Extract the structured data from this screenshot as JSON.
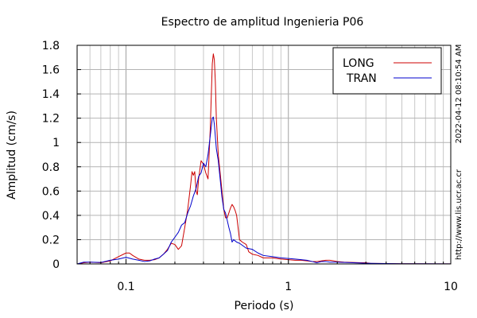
{
  "chart_data": {
    "type": "line",
    "title": "Espectro de amplitud Ingenieria P06",
    "xlabel": "Periodo (s)",
    "ylabel": "Amplitud (cm/s)",
    "x_scale": "log",
    "xlim": [
      0.05,
      10
    ],
    "ylim": [
      0,
      1.8
    ],
    "x_ticks": [
      0.1,
      1,
      10
    ],
    "x_tick_labels": [
      "0.1",
      "1",
      "10"
    ],
    "y_ticks": [
      0,
      0.2,
      0.4,
      0.6,
      0.8,
      1,
      1.2,
      1.4,
      1.6,
      1.8
    ],
    "y_tick_labels": [
      "0",
      "0.2",
      "0.4",
      "0.6",
      "0.8",
      "1",
      "1.2",
      "1.4",
      "1.6",
      "1.8"
    ],
    "grid": true,
    "legend_position": "top-right",
    "side_notes": [
      "2022-04-12 08:10:54 AM",
      "http://www.lis.ucr.ac.cr"
    ],
    "series": [
      {
        "name": "LONG",
        "color": "#cc0000",
        "points": [
          [
            0.05,
            0.0
          ],
          [
            0.055,
            0.01
          ],
          [
            0.06,
            0.015
          ],
          [
            0.07,
            0.01
          ],
          [
            0.08,
            0.025
          ],
          [
            0.09,
            0.06
          ],
          [
            0.1,
            0.09
          ],
          [
            0.105,
            0.09
          ],
          [
            0.11,
            0.07
          ],
          [
            0.12,
            0.04
          ],
          [
            0.13,
            0.03
          ],
          [
            0.14,
            0.03
          ],
          [
            0.15,
            0.035
          ],
          [
            0.16,
            0.05
          ],
          [
            0.17,
            0.08
          ],
          [
            0.18,
            0.12
          ],
          [
            0.19,
            0.17
          ],
          [
            0.2,
            0.16
          ],
          [
            0.21,
            0.12
          ],
          [
            0.22,
            0.15
          ],
          [
            0.23,
            0.3
          ],
          [
            0.24,
            0.45
          ],
          [
            0.25,
            0.65
          ],
          [
            0.255,
            0.76
          ],
          [
            0.26,
            0.73
          ],
          [
            0.265,
            0.76
          ],
          [
            0.27,
            0.6
          ],
          [
            0.275,
            0.57
          ],
          [
            0.28,
            0.7
          ],
          [
            0.29,
            0.85
          ],
          [
            0.3,
            0.82
          ],
          [
            0.31,
            0.75
          ],
          [
            0.32,
            0.7
          ],
          [
            0.33,
            1.1
          ],
          [
            0.34,
            1.65
          ],
          [
            0.345,
            1.73
          ],
          [
            0.35,
            1.68
          ],
          [
            0.355,
            1.5
          ],
          [
            0.36,
            1.2
          ],
          [
            0.37,
            0.9
          ],
          [
            0.38,
            0.75
          ],
          [
            0.39,
            0.6
          ],
          [
            0.4,
            0.45
          ],
          [
            0.41,
            0.38
          ],
          [
            0.42,
            0.38
          ],
          [
            0.43,
            0.42
          ],
          [
            0.44,
            0.46
          ],
          [
            0.45,
            0.49
          ],
          [
            0.46,
            0.47
          ],
          [
            0.47,
            0.44
          ],
          [
            0.48,
            0.4
          ],
          [
            0.49,
            0.3
          ],
          [
            0.5,
            0.2
          ],
          [
            0.52,
            0.18
          ],
          [
            0.55,
            0.16
          ],
          [
            0.57,
            0.1
          ],
          [
            0.6,
            0.08
          ],
          [
            0.65,
            0.07
          ],
          [
            0.7,
            0.05
          ],
          [
            0.8,
            0.05
          ],
          [
            0.9,
            0.04
          ],
          [
            1.0,
            0.035
          ],
          [
            1.1,
            0.03
          ],
          [
            1.2,
            0.03
          ],
          [
            1.3,
            0.025
          ],
          [
            1.4,
            0.02
          ],
          [
            1.5,
            0.02
          ],
          [
            1.6,
            0.025
          ],
          [
            1.7,
            0.03
          ],
          [
            1.8,
            0.03
          ],
          [
            1.9,
            0.025
          ],
          [
            2.0,
            0.02
          ],
          [
            2.2,
            0.015
          ],
          [
            2.5,
            0.012
          ],
          [
            2.8,
            0.01
          ],
          [
            3.0,
            0.01
          ],
          [
            3.2,
            0.005
          ],
          [
            3.5,
            0.004
          ],
          [
            4.0,
            0.003
          ],
          [
            5.0,
            0.002
          ],
          [
            6.0,
            0.002
          ],
          [
            8.0,
            0.001
          ],
          [
            10.0,
            0.001
          ]
        ]
      },
      {
        "name": "TRAN",
        "color": "#0000cc",
        "points": [
          [
            0.05,
            0.0
          ],
          [
            0.055,
            0.015
          ],
          [
            0.06,
            0.015
          ],
          [
            0.07,
            0.012
          ],
          [
            0.08,
            0.03
          ],
          [
            0.09,
            0.04
          ],
          [
            0.1,
            0.055
          ],
          [
            0.11,
            0.04
          ],
          [
            0.12,
            0.03
          ],
          [
            0.13,
            0.02
          ],
          [
            0.14,
            0.025
          ],
          [
            0.15,
            0.04
          ],
          [
            0.16,
            0.05
          ],
          [
            0.17,
            0.08
          ],
          [
            0.18,
            0.11
          ],
          [
            0.19,
            0.18
          ],
          [
            0.2,
            0.22
          ],
          [
            0.21,
            0.26
          ],
          [
            0.22,
            0.32
          ],
          [
            0.23,
            0.34
          ],
          [
            0.24,
            0.42
          ],
          [
            0.25,
            0.48
          ],
          [
            0.26,
            0.56
          ],
          [
            0.27,
            0.62
          ],
          [
            0.28,
            0.72
          ],
          [
            0.29,
            0.75
          ],
          [
            0.3,
            0.83
          ],
          [
            0.31,
            0.8
          ],
          [
            0.32,
            0.9
          ],
          [
            0.33,
            1.05
          ],
          [
            0.34,
            1.2
          ],
          [
            0.345,
            1.21
          ],
          [
            0.35,
            1.15
          ],
          [
            0.36,
            0.95
          ],
          [
            0.37,
            0.85
          ],
          [
            0.38,
            0.7
          ],
          [
            0.39,
            0.55
          ],
          [
            0.4,
            0.45
          ],
          [
            0.41,
            0.42
          ],
          [
            0.42,
            0.36
          ],
          [
            0.43,
            0.3
          ],
          [
            0.44,
            0.25
          ],
          [
            0.45,
            0.18
          ],
          [
            0.46,
            0.2
          ],
          [
            0.48,
            0.18
          ],
          [
            0.5,
            0.17
          ],
          [
            0.55,
            0.13
          ],
          [
            0.6,
            0.12
          ],
          [
            0.65,
            0.09
          ],
          [
            0.7,
            0.07
          ],
          [
            0.8,
            0.06
          ],
          [
            0.9,
            0.05
          ],
          [
            1.0,
            0.045
          ],
          [
            1.1,
            0.04
          ],
          [
            1.2,
            0.035
          ],
          [
            1.3,
            0.03
          ],
          [
            1.4,
            0.02
          ],
          [
            1.5,
            0.01
          ],
          [
            1.6,
            0.02
          ],
          [
            1.7,
            0.02
          ],
          [
            1.8,
            0.015
          ],
          [
            2.0,
            0.015
          ],
          [
            2.5,
            0.01
          ],
          [
            3.0,
            0.006
          ],
          [
            3.5,
            0.004
          ],
          [
            4.0,
            0.003
          ],
          [
            5.0,
            0.002
          ],
          [
            7.0,
            0.002
          ],
          [
            10.0,
            0.001
          ]
        ]
      }
    ]
  }
}
